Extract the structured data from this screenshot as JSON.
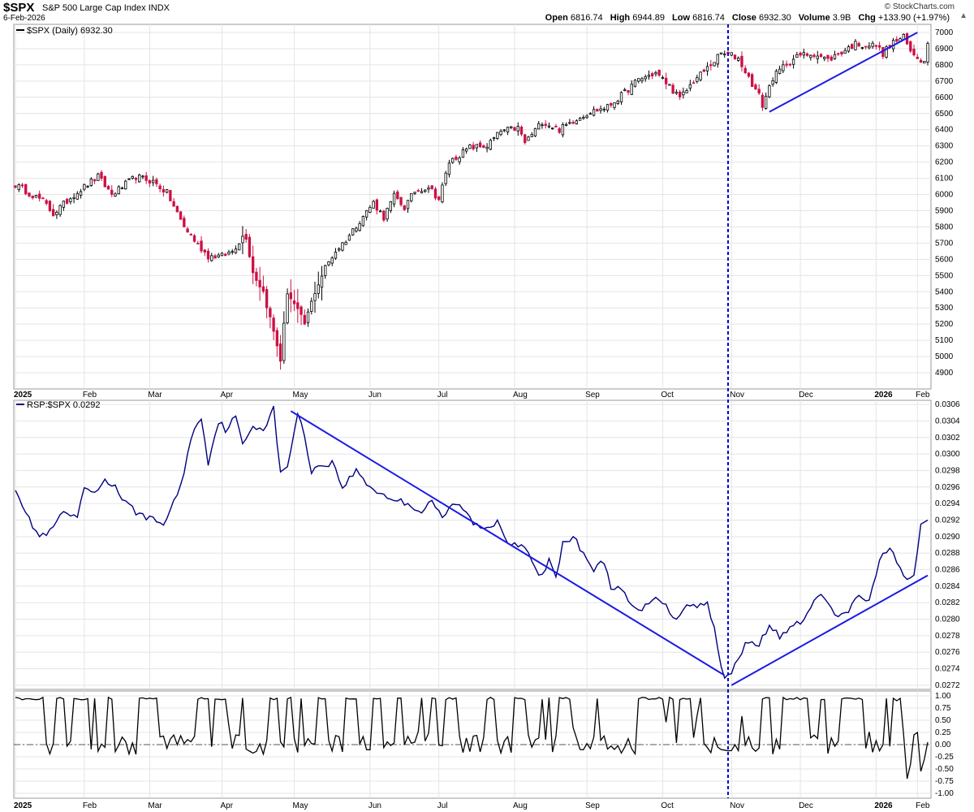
{
  "header": {
    "symbol": "$SPX",
    "name": "S&P 500 Large Cap Index",
    "exchange": "INDX",
    "date": "6-Feb-2026",
    "brand": "© StockCharts.com",
    "open_label": "Open",
    "open": "6816.74",
    "high_label": "High",
    "high": "6944.89",
    "low_label": "Low",
    "low": "6816.74",
    "close_label": "Close",
    "close": "6932.30",
    "volume_label": "Volume",
    "volume": "3.9B",
    "chg_label": "Chg",
    "chg": "+133.90 (+1.97%)"
  },
  "colors": {
    "up": "#000000",
    "down": "#cc1144",
    "line": "#000080",
    "trend": "#1a1ae6",
    "marker": "#0000cc",
    "grid": "#e4e4e4"
  },
  "chart_data": [
    {
      "type": "candlestick",
      "legend": "$SPX (Daily) 6932.30",
      "ylim": [
        4800,
        7050
      ],
      "yticks": [
        4900,
        5000,
        5100,
        5200,
        5300,
        5400,
        5500,
        5600,
        5700,
        5800,
        5900,
        6000,
        6100,
        6200,
        6300,
        6400,
        6500,
        6600,
        6700,
        6800,
        6900,
        7000
      ],
      "x_labels": [
        "2025",
        "Feb",
        "Mar",
        "Apr",
        "May",
        "Jun",
        "Jul",
        "Aug",
        "Sep",
        "Oct",
        "Nov",
        "Dec",
        "2026",
        "Feb"
      ],
      "anchors": [
        [
          0,
          6060
        ],
        [
          8,
          5960
        ],
        [
          11,
          5880
        ],
        [
          17,
          6000
        ],
        [
          24,
          6110
        ],
        [
          28,
          6000
        ],
        [
          35,
          6110
        ],
        [
          40,
          6080
        ],
        [
          44,
          6010
        ],
        [
          49,
          5800
        ],
        [
          53,
          5690
        ],
        [
          56,
          5620
        ],
        [
          60,
          5620
        ],
        [
          63,
          5650
        ],
        [
          66,
          5740
        ],
        [
          67,
          5740
        ],
        [
          69,
          5520
        ],
        [
          72,
          5400
        ],
        [
          76,
          5070
        ],
        [
          77,
          4980
        ],
        [
          79,
          5400
        ],
        [
          82,
          5280
        ],
        [
          84,
          5200
        ],
        [
          87,
          5400
        ],
        [
          90,
          5550
        ],
        [
          93,
          5650
        ],
        [
          96,
          5720
        ],
        [
          100,
          5840
        ],
        [
          104,
          5950
        ],
        [
          107,
          5860
        ],
        [
          110,
          5990
        ],
        [
          113,
          5920
        ],
        [
          116,
          6020
        ],
        [
          120,
          6050
        ],
        [
          123,
          5970
        ],
        [
          126,
          6200
        ],
        [
          132,
          6290
        ],
        [
          137,
          6300
        ],
        [
          141,
          6390
        ],
        [
          146,
          6410
        ],
        [
          148,
          6320
        ],
        [
          153,
          6450
        ],
        [
          158,
          6400
        ],
        [
          163,
          6470
        ],
        [
          167,
          6510
        ],
        [
          172,
          6540
        ],
        [
          176,
          6610
        ],
        [
          181,
          6710
        ],
        [
          186,
          6750
        ],
        [
          190,
          6670
        ],
        [
          193,
          6590
        ],
        [
          197,
          6700
        ],
        [
          201,
          6780
        ],
        [
          205,
          6870
        ],
        [
          208,
          6860
        ],
        [
          210,
          6840
        ],
        [
          213,
          6720
        ],
        [
          216,
          6610
        ],
        [
          217,
          6550
        ],
        [
          220,
          6720
        ],
        [
          224,
          6810
        ],
        [
          228,
          6860
        ],
        [
          232,
          6870
        ],
        [
          236,
          6830
        ],
        [
          240,
          6880
        ],
        [
          244,
          6930
        ],
        [
          247,
          6920
        ],
        [
          250,
          6920
        ],
        [
          252,
          6870
        ],
        [
          255,
          6940
        ],
        [
          258,
          6970
        ],
        [
          260,
          6880
        ],
        [
          262,
          6850
        ],
        [
          265,
          6800
        ]
      ],
      "num_bars": 266,
      "trendline": [
        [
          219,
          6510
        ],
        [
          262,
          7000
        ]
      ],
      "marker_index": 207
    },
    {
      "type": "line",
      "legend": "RSP:$SPX 0.0292",
      "ylim": [
        0.02715,
        0.03065
      ],
      "yticks": [
        0.0272,
        0.0274,
        0.0276,
        0.0278,
        0.028,
        0.0282,
        0.0284,
        0.0286,
        0.0288,
        0.029,
        0.0292,
        0.0294,
        0.0296,
        0.0298,
        0.03,
        0.0302,
        0.0304,
        0.0306
      ],
      "ytick_labels": [
        "0.0272",
        "0.0274",
        "0.0276",
        "0.0278",
        "0.0280",
        "0.0282",
        "0.0284",
        "0.0286",
        "0.0288",
        "0.0290",
        "0.0292",
        "0.0294",
        "0.0296",
        "0.0298",
        "0.0300",
        "0.0302",
        "0.0304",
        "0.0306"
      ],
      "anchors": [
        [
          0,
          0.0296
        ],
        [
          4,
          0.0292
        ],
        [
          7,
          0.029
        ],
        [
          10,
          0.02905
        ],
        [
          14,
          0.0293
        ],
        [
          18,
          0.0292
        ],
        [
          20,
          0.0296
        ],
        [
          23,
          0.0295
        ],
        [
          26,
          0.0297
        ],
        [
          29,
          0.0296
        ],
        [
          32,
          0.0294
        ],
        [
          35,
          0.0293
        ],
        [
          40,
          0.0292
        ],
        [
          43,
          0.02915
        ],
        [
          48,
          0.0296
        ],
        [
          51,
          0.0302
        ],
        [
          54,
          0.03045
        ],
        [
          56,
          0.0299
        ],
        [
          59,
          0.0304
        ],
        [
          61,
          0.0303
        ],
        [
          64,
          0.03045
        ],
        [
          66,
          0.0301
        ],
        [
          69,
          0.03035
        ],
        [
          72,
          0.0303
        ],
        [
          75,
          0.03055
        ],
        [
          77,
          0.02975
        ],
        [
          79,
          0.02985
        ],
        [
          82,
          0.0305
        ],
        [
          84,
          0.0302
        ],
        [
          86,
          0.0298
        ],
        [
          88,
          0.02985
        ],
        [
          92,
          0.0299
        ],
        [
          95,
          0.0296
        ],
        [
          99,
          0.0298
        ],
        [
          103,
          0.0296
        ],
        [
          107,
          0.0295
        ],
        [
          110,
          0.02945
        ],
        [
          114,
          0.0294
        ],
        [
          118,
          0.0293
        ],
        [
          121,
          0.02945
        ],
        [
          124,
          0.0292
        ],
        [
          127,
          0.0294
        ],
        [
          130,
          0.02935
        ],
        [
          133,
          0.02915
        ],
        [
          137,
          0.0291
        ],
        [
          140,
          0.0292
        ],
        [
          143,
          0.02895
        ],
        [
          146,
          0.0289
        ],
        [
          149,
          0.0288
        ],
        [
          152,
          0.0285
        ],
        [
          155,
          0.0287
        ],
        [
          157,
          0.02855
        ],
        [
          159,
          0.0289
        ],
        [
          162,
          0.029
        ],
        [
          165,
          0.0288
        ],
        [
          168,
          0.0286
        ],
        [
          171,
          0.0287
        ],
        [
          173,
          0.0284
        ],
        [
          176,
          0.02835
        ],
        [
          179,
          0.02815
        ],
        [
          182,
          0.0281
        ],
        [
          186,
          0.0283
        ],
        [
          189,
          0.02815
        ],
        [
          192,
          0.028
        ],
        [
          195,
          0.0282
        ],
        [
          198,
          0.02815
        ],
        [
          201,
          0.0282
        ],
        [
          203,
          0.0279
        ],
        [
          205,
          0.0274
        ],
        [
          206,
          0.02728
        ],
        [
          208,
          0.02735
        ],
        [
          210,
          0.02755
        ],
        [
          213,
          0.02775
        ],
        [
          216,
          0.0277
        ],
        [
          219,
          0.0279
        ],
        [
          222,
          0.0278
        ],
        [
          226,
          0.0279
        ],
        [
          230,
          0.02805
        ],
        [
          233,
          0.0283
        ],
        [
          236,
          0.0282
        ],
        [
          239,
          0.028
        ],
        [
          242,
          0.0281
        ],
        [
          245,
          0.0283
        ],
        [
          248,
          0.0282
        ],
        [
          251,
          0.0287
        ],
        [
          254,
          0.0289
        ],
        [
          257,
          0.0286
        ],
        [
          259,
          0.02845
        ],
        [
          261,
          0.0285
        ],
        [
          263,
          0.02915
        ],
        [
          265,
          0.02918
        ]
      ],
      "trendlines": [
        [
          [
            80,
            0.03052
          ],
          [
            206,
            0.02732
          ]
        ],
        [
          [
            208,
            0.0272
          ],
          [
            265,
            0.02853
          ]
        ]
      ],
      "marker_index": 207
    },
    {
      "type": "line",
      "ylim": [
        -1.1,
        1.1
      ],
      "yticks": [
        1.0,
        0.75,
        0.5,
        0.25,
        0.0,
        -0.25,
        -0.5,
        -0.75,
        -1.0
      ],
      "ytick_labels": [
        "1.00",
        "0.75",
        "0.50",
        "0.25",
        "0.00",
        "-0.25",
        "-0.50",
        "-0.75",
        "-1.00"
      ],
      "zero_line": 0.0,
      "marker_index": 207
    }
  ]
}
